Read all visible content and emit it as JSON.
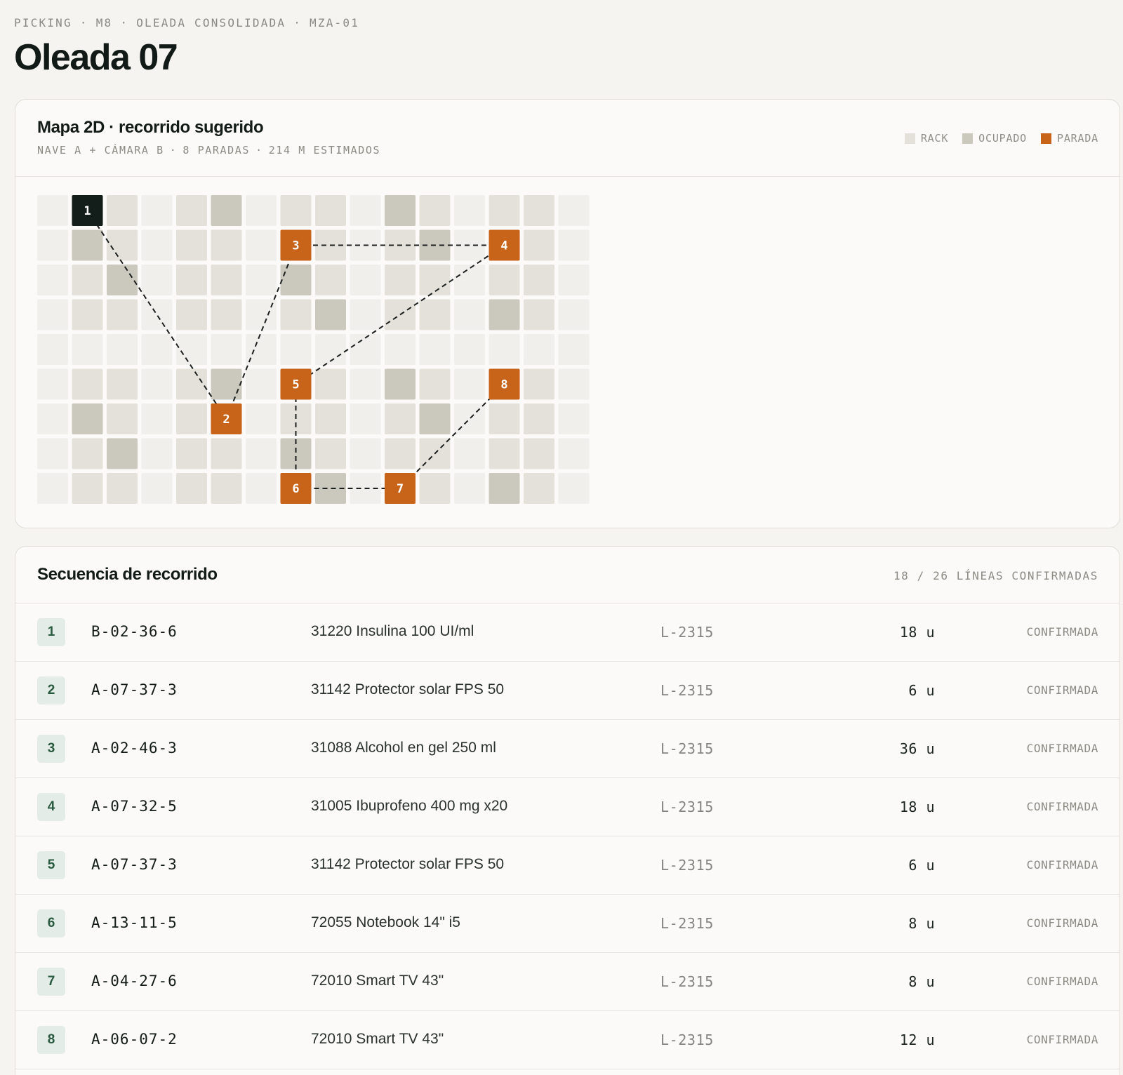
{
  "breadcrumb": [
    "PICKING",
    "M8",
    "OLEADA CONSOLIDADA",
    "MZA-01"
  ],
  "page_title": "Oleada 07",
  "map": {
    "title": "Mapa 2D · recorrido sugerido",
    "subtitle": [
      "NAVE A + CÁMARA B",
      "8 PARADAS",
      "214 M ESTIMADOS"
    ],
    "legend": [
      {
        "label": "RACK",
        "color": "#e4e1da"
      },
      {
        "label": "OCUPADO",
        "color": "#cbc9be"
      },
      {
        "label": "PARADA",
        "color": "#c8631a"
      }
    ],
    "colors": {
      "floor": "#f0efeb",
      "rack": "#e4e1da",
      "occupied": "#cbc9be",
      "stop": "#c8631a",
      "start": "#131d1a"
    },
    "stops": [
      {
        "n": "1",
        "col": 1,
        "row": 0
      },
      {
        "n": "2",
        "col": 5,
        "row": 6
      },
      {
        "n": "3",
        "col": 7,
        "row": 1
      },
      {
        "n": "4",
        "col": 13,
        "row": 1
      },
      {
        "n": "5",
        "col": 7,
        "row": 5
      },
      {
        "n": "6",
        "col": 7,
        "row": 8
      },
      {
        "n": "7",
        "col": 10,
        "row": 8
      },
      {
        "n": "8",
        "col": 13,
        "row": 5
      }
    ]
  },
  "sequence": {
    "title": "Secuencia de recorrido",
    "count": "18 / 26 LÍNEAS CONFIRMADAS",
    "rows": [
      {
        "n": "1",
        "loc": "B-02-36-6",
        "product": "31220 Insulina 100 UI/ml",
        "lot": "L-2315",
        "qty": "18 u",
        "status": "CONFIRMADA"
      },
      {
        "n": "2",
        "loc": "A-07-37-3",
        "product": "31142 Protector solar FPS 50",
        "lot": "L-2315",
        "qty": "6 u",
        "status": "CONFIRMADA"
      },
      {
        "n": "3",
        "loc": "A-02-46-3",
        "product": "31088 Alcohol en gel 250 ml",
        "lot": "L-2315",
        "qty": "36 u",
        "status": "CONFIRMADA"
      },
      {
        "n": "4",
        "loc": "A-07-32-5",
        "product": "31005 Ibuprofeno 400 mg x20",
        "lot": "L-2315",
        "qty": "18 u",
        "status": "CONFIRMADA"
      },
      {
        "n": "5",
        "loc": "A-07-37-3",
        "product": "31142 Protector solar FPS 50",
        "lot": "L-2315",
        "qty": "6 u",
        "status": "CONFIRMADA"
      },
      {
        "n": "6",
        "loc": "A-13-11-5",
        "product": "72055 Notebook 14\" i5",
        "lot": "L-2315",
        "qty": "8 u",
        "status": "CONFIRMADA"
      },
      {
        "n": "7",
        "loc": "A-04-27-6",
        "product": "72010 Smart TV 43\"",
        "lot": "L-2315",
        "qty": "8 u",
        "status": "CONFIRMADA"
      },
      {
        "n": "8",
        "loc": "A-06-07-2",
        "product": "72010 Smart TV 43\"",
        "lot": "L-2315",
        "qty": "12 u",
        "status": "CONFIRMADA"
      }
    ]
  }
}
